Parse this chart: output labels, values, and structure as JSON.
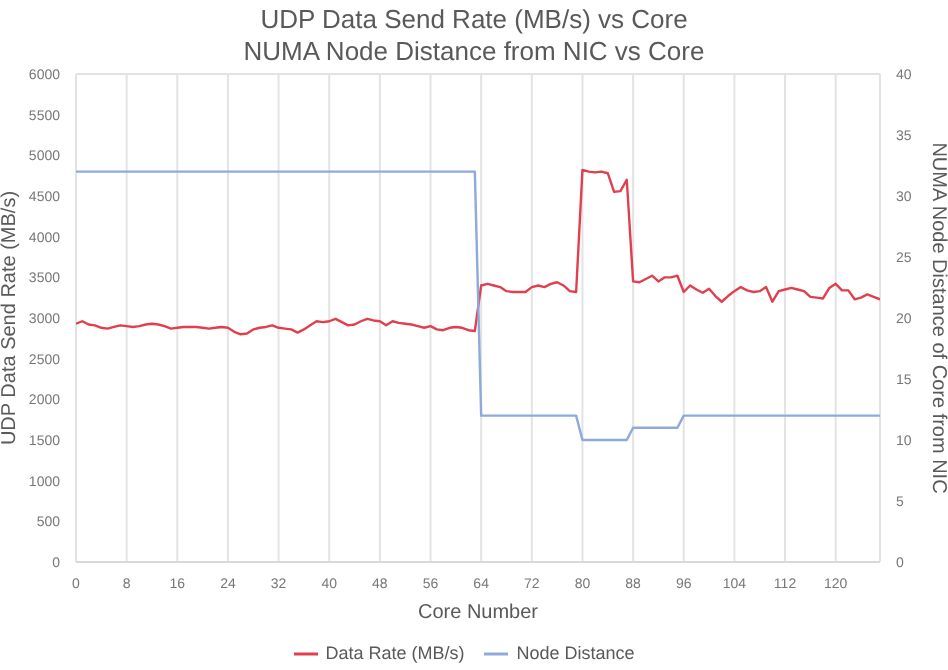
{
  "chart_data": {
    "type": "line",
    "title": "UDP Data Send Rate (MB/s) vs Core",
    "subtitle": "NUMA Node Distance from NIC vs Core",
    "xlabel": "Core Number",
    "ylabel": "UDP Data Send Rate (MB/s)",
    "y2label": "NUMA Node Distance of Core from NIC",
    "x": [
      0,
      1,
      2,
      3,
      4,
      5,
      6,
      7,
      8,
      9,
      10,
      11,
      12,
      13,
      14,
      15,
      16,
      17,
      18,
      19,
      20,
      21,
      22,
      23,
      24,
      25,
      26,
      27,
      28,
      29,
      30,
      31,
      32,
      33,
      34,
      35,
      36,
      37,
      38,
      39,
      40,
      41,
      42,
      43,
      44,
      45,
      46,
      47,
      48,
      49,
      50,
      51,
      52,
      53,
      54,
      55,
      56,
      57,
      58,
      59,
      60,
      61,
      62,
      63,
      64,
      65,
      66,
      67,
      68,
      69,
      70,
      71,
      72,
      73,
      74,
      75,
      76,
      77,
      78,
      79,
      80,
      81,
      82,
      83,
      84,
      85,
      86,
      87,
      88,
      89,
      90,
      91,
      92,
      93,
      94,
      95,
      96,
      97,
      98,
      99,
      100,
      101,
      102,
      103,
      104,
      105,
      106,
      107,
      108,
      109,
      110,
      111,
      112,
      113,
      114,
      115,
      116,
      117,
      118,
      119,
      120,
      121,
      122,
      123,
      124,
      125,
      126,
      127
    ],
    "series": [
      {
        "name": "Data Rate (MB/s)",
        "color": "#e0404e",
        "values": [
          2930,
          2960,
          2920,
          2910,
          2880,
          2870,
          2890,
          2910,
          2900,
          2890,
          2900,
          2920,
          2930,
          2920,
          2900,
          2870,
          2880,
          2890,
          2890,
          2890,
          2880,
          2870,
          2880,
          2890,
          2880,
          2830,
          2800,
          2810,
          2860,
          2880,
          2890,
          2910,
          2880,
          2870,
          2860,
          2820,
          2860,
          2910,
          2960,
          2950,
          2960,
          2990,
          2950,
          2910,
          2920,
          2960,
          2990,
          2970,
          2960,
          2910,
          2960,
          2940,
          2930,
          2920,
          2900,
          2880,
          2900,
          2860,
          2850,
          2880,
          2890,
          2880,
          2850,
          2840,
          3400,
          3420,
          3400,
          3380,
          3330,
          3320,
          3320,
          3320,
          3380,
          3400,
          3380,
          3420,
          3440,
          3400,
          3330,
          3320,
          4820,
          4800,
          4790,
          4800,
          4780,
          4550,
          4560,
          4700,
          3450,
          3440,
          3480,
          3520,
          3450,
          3500,
          3500,
          3520,
          3320,
          3400,
          3350,
          3310,
          3360,
          3270,
          3200,
          3270,
          3330,
          3380,
          3340,
          3320,
          3330,
          3380,
          3200,
          3330,
          3350,
          3370,
          3350,
          3330,
          3260,
          3250,
          3240,
          3370,
          3420,
          3340,
          3340,
          3230,
          3250,
          3290,
          3260,
          3230
        ]
      },
      {
        "name": "Node Distance",
        "color": "#8eaadb",
        "axis": "y2",
        "values": [
          32,
          32,
          32,
          32,
          32,
          32,
          32,
          32,
          32,
          32,
          32,
          32,
          32,
          32,
          32,
          32,
          32,
          32,
          32,
          32,
          32,
          32,
          32,
          32,
          32,
          32,
          32,
          32,
          32,
          32,
          32,
          32,
          32,
          32,
          32,
          32,
          32,
          32,
          32,
          32,
          32,
          32,
          32,
          32,
          32,
          32,
          32,
          32,
          32,
          32,
          32,
          32,
          32,
          32,
          32,
          32,
          32,
          32,
          32,
          32,
          32,
          32,
          32,
          32,
          12,
          12,
          12,
          12,
          12,
          12,
          12,
          12,
          12,
          12,
          12,
          12,
          12,
          12,
          12,
          12,
          10,
          10,
          10,
          10,
          10,
          10,
          10,
          10,
          11,
          11,
          11,
          11,
          11,
          11,
          11,
          11,
          12,
          12,
          12,
          12,
          12,
          12,
          12,
          12,
          12,
          12,
          12,
          12,
          12,
          12,
          12,
          12,
          12,
          12,
          12,
          12,
          12,
          12,
          12,
          12,
          12,
          12,
          12,
          12,
          12,
          12,
          12,
          12
        ]
      }
    ],
    "xlim": [
      0,
      127
    ],
    "xticks": [
      0,
      8,
      16,
      24,
      32,
      40,
      48,
      56,
      64,
      72,
      80,
      88,
      96,
      104,
      112,
      120
    ],
    "ylim": [
      0,
      6000
    ],
    "yticks": [
      0,
      500,
      1000,
      1500,
      2000,
      2500,
      3000,
      3500,
      4000,
      4500,
      5000,
      5500,
      6000
    ],
    "y2lim": [
      0,
      40
    ],
    "y2ticks": [
      0,
      5,
      10,
      15,
      20,
      25,
      30,
      35,
      40
    ],
    "grid": true,
    "legend": "bottom",
    "marker": "none",
    "line_style": "solid"
  }
}
